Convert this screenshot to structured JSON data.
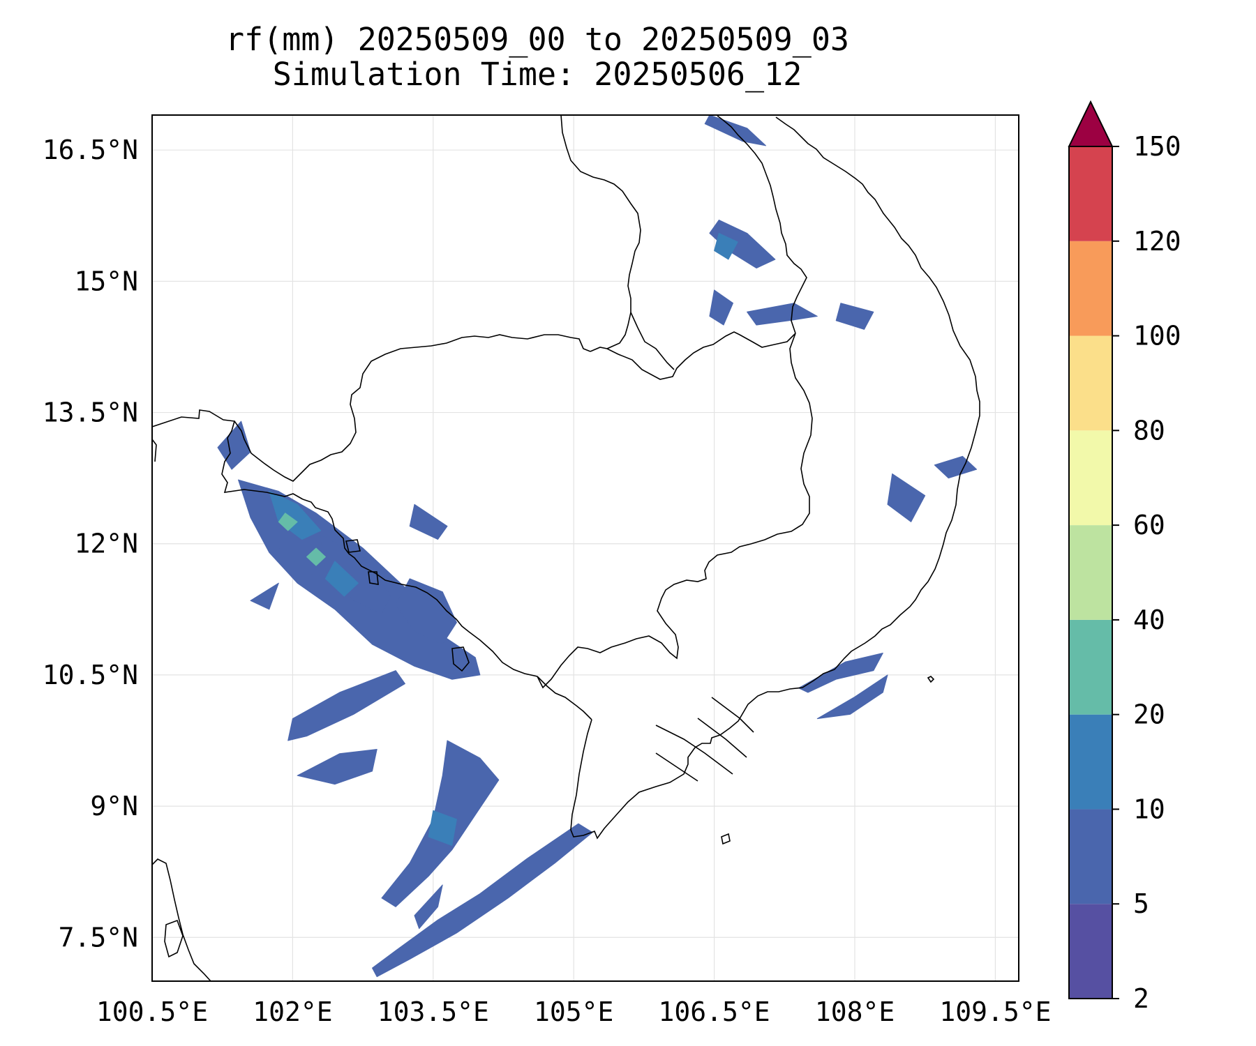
{
  "title": {
    "line1": "rf(mm) 20250509_00 to 20250509_03",
    "line2": "Simulation Time: 20250506_12"
  },
  "map": {
    "lon_range": [
      100.5,
      109.75
    ],
    "lat_range": [
      7.0,
      16.9
    ],
    "grid": true,
    "lon_ticks": [
      "100.5°E",
      "102°E",
      "103.5°E",
      "105°E",
      "106.5°E",
      "108°E",
      "109.5°E"
    ],
    "lat_ticks": [
      "16.5°N",
      "15°N",
      "13.5°N",
      "12°N",
      "10.5°N",
      "9°N",
      "7.5°N"
    ],
    "lon_values": [
      100.5,
      102,
      103.5,
      105,
      106.5,
      108,
      109.5
    ],
    "lat_values": [
      16.5,
      15,
      13.5,
      12,
      10.5,
      9,
      7.5
    ]
  },
  "colorbar": {
    "levels": [
      2,
      5,
      10,
      20,
      40,
      60,
      80,
      100,
      120,
      150
    ],
    "tick_labels": [
      "2",
      "5",
      "10",
      "20",
      "40",
      "60",
      "80",
      "100",
      "120",
      "150"
    ],
    "colors": [
      "#5650a2",
      "#4a66ad",
      "#3a7fb8",
      "#65bca8",
      "#bde3a0",
      "#f2f9aa",
      "#fbdf8a",
      "#f89b5a",
      "#d5434f"
    ],
    "extend_max_color": "#9c0142",
    "extend": "max",
    "placement": "right"
  },
  "rainfall_areas": [
    {
      "name": "gulf-of-thailand-band-east",
      "level": 5,
      "lonlat": [
        [
          101.42,
          12.73
        ],
        [
          101.85,
          12.6
        ],
        [
          102.25,
          12.35
        ],
        [
          102.75,
          11.95
        ],
        [
          103.2,
          11.5
        ],
        [
          103.6,
          10.95
        ],
        [
          103.95,
          10.7
        ],
        [
          104.0,
          10.5
        ],
        [
          103.7,
          10.45
        ],
        [
          103.3,
          10.6
        ],
        [
          102.85,
          10.85
        ],
        [
          102.45,
          11.25
        ],
        [
          102.05,
          11.55
        ],
        [
          101.75,
          11.9
        ],
        [
          101.55,
          12.3
        ]
      ]
    },
    {
      "name": "gulf-of-thailand-band-west",
      "level": 5,
      "lonlat": [
        [
          101.8,
          12.4
        ],
        [
          102.3,
          12.1
        ],
        [
          102.6,
          11.8
        ],
        [
          102.55,
          11.6
        ],
        [
          102.2,
          11.65
        ],
        [
          101.85,
          11.95
        ]
      ]
    },
    {
      "name": "koh-kong-cluster",
      "level": 5,
      "lonlat": [
        [
          102.3,
          12.1
        ],
        [
          102.75,
          11.85
        ],
        [
          103.05,
          11.4
        ],
        [
          102.95,
          11.2
        ],
        [
          102.65,
          11.35
        ],
        [
          102.35,
          11.7
        ]
      ]
    },
    {
      "name": "kampot-cluster",
      "level": 5,
      "lonlat": [
        [
          103.25,
          11.6
        ],
        [
          103.6,
          11.45
        ],
        [
          103.75,
          11.1
        ],
        [
          103.6,
          10.85
        ],
        [
          103.3,
          11.0
        ],
        [
          103.1,
          11.3
        ]
      ]
    },
    {
      "name": "gulf-south-band",
      "level": 5,
      "lonlat": [
        [
          102.0,
          10.0
        ],
        [
          102.5,
          10.3
        ],
        [
          103.1,
          10.55
        ],
        [
          103.2,
          10.4
        ],
        [
          102.65,
          10.05
        ],
        [
          102.15,
          9.8
        ],
        [
          101.95,
          9.75
        ]
      ]
    },
    {
      "name": "gulf-mid-band",
      "level": 5,
      "lonlat": [
        [
          102.05,
          9.35
        ],
        [
          102.5,
          9.6
        ],
        [
          102.9,
          9.65
        ],
        [
          102.85,
          9.4
        ],
        [
          102.45,
          9.25
        ]
      ]
    },
    {
      "name": "phu-quoc-band",
      "level": 5,
      "lonlat": [
        [
          103.65,
          9.75
        ],
        [
          104.0,
          9.55
        ],
        [
          104.2,
          9.3
        ],
        [
          103.95,
          8.9
        ],
        [
          103.7,
          8.5
        ],
        [
          103.45,
          8.2
        ],
        [
          103.1,
          7.85
        ],
        [
          102.95,
          7.95
        ],
        [
          103.25,
          8.35
        ],
        [
          103.5,
          8.85
        ],
        [
          103.6,
          9.35
        ]
      ]
    },
    {
      "name": "ca-mau-band",
      "level": 5,
      "lonlat": [
        [
          102.9,
          7.05
        ],
        [
          103.25,
          7.25
        ],
        [
          103.75,
          7.55
        ],
        [
          104.3,
          7.95
        ],
        [
          104.8,
          8.35
        ],
        [
          105.2,
          8.7
        ],
        [
          105.05,
          8.8
        ],
        [
          104.5,
          8.4
        ],
        [
          104.0,
          8.0
        ],
        [
          103.55,
          7.7
        ],
        [
          103.1,
          7.35
        ],
        [
          102.85,
          7.15
        ]
      ]
    },
    {
      "name": "ca-mau-inner",
      "level": 5,
      "lonlat": [
        [
          103.3,
          7.75
        ],
        [
          103.6,
          8.1
        ],
        [
          103.55,
          7.85
        ],
        [
          103.35,
          7.6
        ]
      ]
    },
    {
      "name": "south-vietnam-coast",
      "level": 5,
      "lonlat": [
        [
          107.4,
          10.35
        ],
        [
          107.9,
          10.65
        ],
        [
          108.3,
          10.75
        ],
        [
          108.2,
          10.55
        ],
        [
          107.8,
          10.45
        ],
        [
          107.5,
          10.3
        ]
      ]
    },
    {
      "name": "south-vietnam-coast-2",
      "level": 5,
      "lonlat": [
        [
          107.6,
          10.0
        ],
        [
          108.0,
          10.25
        ],
        [
          108.35,
          10.5
        ],
        [
          108.3,
          10.3
        ],
        [
          107.95,
          10.05
        ]
      ]
    },
    {
      "name": "central-highlands-cell",
      "level": 5,
      "lonlat": [
        [
          106.55,
          15.7
        ],
        [
          106.85,
          15.55
        ],
        [
          107.15,
          15.25
        ],
        [
          106.95,
          15.15
        ],
        [
          106.65,
          15.35
        ],
        [
          106.45,
          15.55
        ]
      ]
    },
    {
      "name": "laos-cell",
      "level": 5,
      "lonlat": [
        [
          106.5,
          14.9
        ],
        [
          106.7,
          14.75
        ],
        [
          106.6,
          14.5
        ],
        [
          106.45,
          14.6
        ]
      ]
    },
    {
      "name": "laos-cell-2",
      "level": 5,
      "lonlat": [
        [
          106.85,
          14.65
        ],
        [
          107.35,
          14.75
        ],
        [
          107.6,
          14.6
        ],
        [
          107.3,
          14.55
        ],
        [
          106.95,
          14.5
        ]
      ]
    },
    {
      "name": "vietnam-border-cell",
      "level": 5,
      "lonlat": [
        [
          107.85,
          14.75
        ],
        [
          108.2,
          14.65
        ],
        [
          108.1,
          14.45
        ],
        [
          107.8,
          14.55
        ]
      ]
    },
    {
      "name": "north-cell",
      "level": 5,
      "lonlat": [
        [
          106.45,
          16.9
        ],
        [
          106.85,
          16.75
        ],
        [
          107.05,
          16.55
        ],
        [
          106.8,
          16.6
        ],
        [
          106.4,
          16.8
        ]
      ]
    },
    {
      "name": "nha-trang-cell",
      "level": 5,
      "lonlat": [
        [
          108.4,
          12.8
        ],
        [
          108.75,
          12.55
        ],
        [
          108.6,
          12.25
        ],
        [
          108.35,
          12.45
        ]
      ]
    },
    {
      "name": "vietnam-coast-cell",
      "level": 5,
      "lonlat": [
        [
          108.85,
          12.9
        ],
        [
          109.15,
          13.0
        ],
        [
          109.3,
          12.85
        ],
        [
          109.0,
          12.75
        ]
      ]
    },
    {
      "name": "mekong-delta-cell",
      "level": 5,
      "lonlat": [
        [
          101.55,
          11.35
        ],
        [
          101.85,
          11.55
        ],
        [
          101.75,
          11.25
        ]
      ]
    },
    {
      "name": "thai-coast-cell",
      "level": 5,
      "lonlat": [
        [
          101.2,
          13.1
        ],
        [
          101.45,
          13.4
        ],
        [
          101.55,
          13.05
        ],
        [
          101.35,
          12.85
        ]
      ]
    },
    {
      "name": "cardamom-cell",
      "level": 5,
      "lonlat": [
        [
          103.3,
          12.45
        ],
        [
          103.65,
          12.2
        ],
        [
          103.55,
          12.05
        ],
        [
          103.25,
          12.2
        ]
      ]
    },
    {
      "name": "gulf-core-10",
      "level": 10,
      "lonlat": [
        [
          101.75,
          12.6
        ],
        [
          102.05,
          12.45
        ],
        [
          102.3,
          12.15
        ],
        [
          102.1,
          12.05
        ],
        [
          101.85,
          12.25
        ]
      ]
    },
    {
      "name": "gulf-core-10b",
      "level": 10,
      "lonlat": [
        [
          102.45,
          11.8
        ],
        [
          102.7,
          11.55
        ],
        [
          102.55,
          11.4
        ],
        [
          102.35,
          11.6
        ]
      ]
    },
    {
      "name": "phu-quoc-core-10",
      "level": 10,
      "lonlat": [
        [
          103.5,
          8.95
        ],
        [
          103.75,
          8.85
        ],
        [
          103.7,
          8.55
        ],
        [
          103.45,
          8.65
        ]
      ]
    },
    {
      "name": "highland-core-10",
      "level": 10,
      "lonlat": [
        [
          106.55,
          15.55
        ],
        [
          106.75,
          15.45
        ],
        [
          106.65,
          15.25
        ],
        [
          106.5,
          15.35
        ]
      ]
    },
    {
      "name": "gulf-core-20",
      "level": 20,
      "lonlat": [
        [
          101.92,
          12.35
        ],
        [
          102.05,
          12.25
        ],
        [
          101.95,
          12.15
        ],
        [
          101.85,
          12.25
        ]
      ]
    },
    {
      "name": "gulf-core-20b",
      "level": 20,
      "lonlat": [
        [
          102.25,
          11.95
        ],
        [
          102.35,
          11.85
        ],
        [
          102.25,
          11.75
        ],
        [
          102.15,
          11.85
        ]
      ]
    }
  ]
}
